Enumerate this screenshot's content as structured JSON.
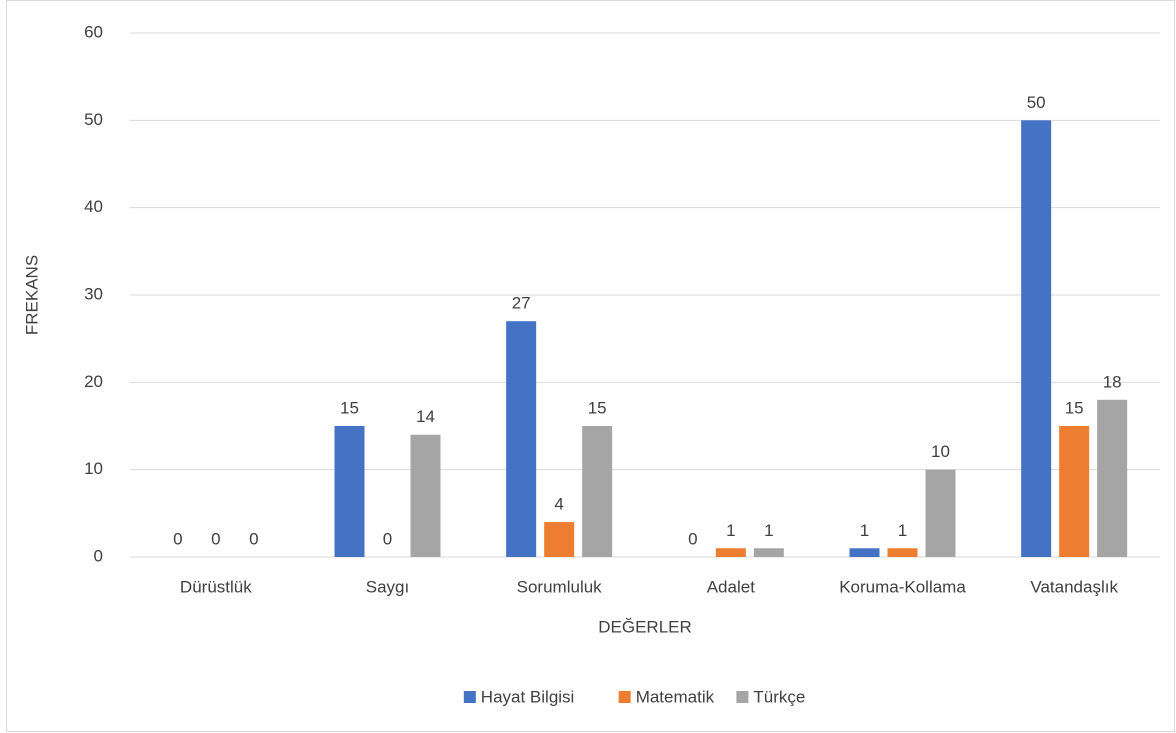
{
  "chart_data": {
    "type": "bar",
    "x_label": "DEĞERLER",
    "y_label": "FREKANS",
    "categories": [
      "Dürüstlük",
      "Saygı",
      "Sorumluluk",
      "Adalet",
      "Koruma-Kollama",
      "Vatandaşlık"
    ],
    "series": [
      {
        "name": "Hayat Bilgisi",
        "color": "#4472c4",
        "values": [
          0,
          15,
          27,
          0,
          1,
          50
        ]
      },
      {
        "name": "Matematik",
        "color": "#ed7d31",
        "values": [
          0,
          0,
          4,
          1,
          1,
          15
        ]
      },
      {
        "name": "Türkçe",
        "color": "#a5a5a5",
        "values": [
          0,
          14,
          15,
          1,
          10,
          18
        ]
      }
    ],
    "ylim": [
      0,
      60
    ],
    "yticks": [
      0,
      10,
      20,
      30,
      40,
      50,
      60
    ],
    "grid": true,
    "legend": "bottom"
  }
}
